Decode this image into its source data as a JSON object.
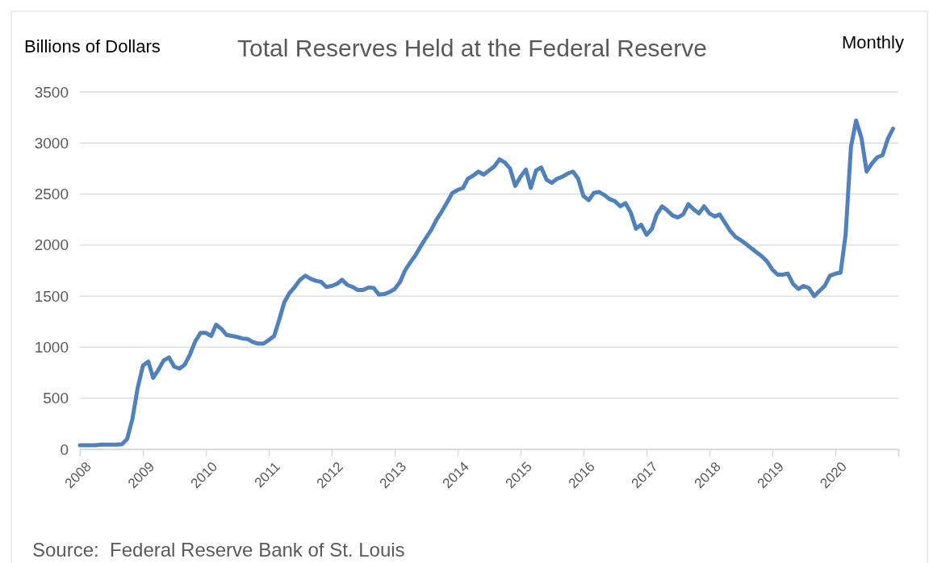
{
  "chart_data": {
    "type": "line",
    "title": "Total Reserves Held at the Federal Reserve",
    "ylabel": "Billions of Dollars",
    "annotations": [
      "Monthly",
      "Source:  Federal Reserve Bank of St. Louis"
    ],
    "x": [
      "2008-01",
      "2008-02",
      "2008-03",
      "2008-04",
      "2008-05",
      "2008-06",
      "2008-07",
      "2008-08",
      "2008-09",
      "2008-10",
      "2008-11",
      "2008-12",
      "2009-01",
      "2009-02",
      "2009-03",
      "2009-04",
      "2009-05",
      "2009-06",
      "2009-07",
      "2009-08",
      "2009-09",
      "2009-10",
      "2009-11",
      "2009-12",
      "2010-01",
      "2010-02",
      "2010-03",
      "2010-04",
      "2010-05",
      "2010-06",
      "2010-07",
      "2010-08",
      "2010-09",
      "2010-10",
      "2010-11",
      "2010-12",
      "2011-01",
      "2011-02",
      "2011-03",
      "2011-04",
      "2011-05",
      "2011-06",
      "2011-07",
      "2011-08",
      "2011-09",
      "2011-10",
      "2011-11",
      "2011-12",
      "2012-01",
      "2012-02",
      "2012-03",
      "2012-04",
      "2012-05",
      "2012-06",
      "2012-07",
      "2012-08",
      "2012-09",
      "2012-10",
      "2012-11",
      "2012-12",
      "2013-01",
      "2013-02",
      "2013-03",
      "2013-04",
      "2013-05",
      "2013-06",
      "2013-07",
      "2013-08",
      "2013-09",
      "2013-10",
      "2013-11",
      "2013-12",
      "2014-01",
      "2014-02",
      "2014-03",
      "2014-04",
      "2014-05",
      "2014-06",
      "2014-07",
      "2014-08",
      "2014-09",
      "2014-10",
      "2014-11",
      "2014-12",
      "2015-01",
      "2015-02",
      "2015-03",
      "2015-04",
      "2015-05",
      "2015-06",
      "2015-07",
      "2015-08",
      "2015-09",
      "2015-10",
      "2015-11",
      "2015-12",
      "2016-01",
      "2016-02",
      "2016-03",
      "2016-04",
      "2016-05",
      "2016-06",
      "2016-07",
      "2016-08",
      "2016-09",
      "2016-10",
      "2016-11",
      "2016-12",
      "2017-01",
      "2017-02",
      "2017-03",
      "2017-04",
      "2017-05",
      "2017-06",
      "2017-07",
      "2017-08",
      "2017-09",
      "2017-10",
      "2017-11",
      "2017-12",
      "2018-01",
      "2018-02",
      "2018-03",
      "2018-04",
      "2018-05",
      "2018-06",
      "2018-07",
      "2018-08",
      "2018-09",
      "2018-10",
      "2018-11",
      "2018-12",
      "2019-01",
      "2019-02",
      "2019-03",
      "2019-04",
      "2019-05",
      "2019-06",
      "2019-07",
      "2019-08",
      "2019-09",
      "2019-10",
      "2019-11",
      "2019-12",
      "2020-01",
      "2020-02",
      "2020-03",
      "2020-04",
      "2020-05",
      "2020-06",
      "2020-07",
      "2020-08",
      "2020-09",
      "2020-10",
      "2020-11",
      "2020-12"
    ],
    "series": [
      {
        "color": "#4f81bd",
        "values": [
          40,
          40,
          40,
          40,
          45,
          45,
          45,
          45,
          50,
          100,
          300,
          600,
          820,
          860,
          700,
          780,
          870,
          900,
          810,
          790,
          830,
          930,
          1060,
          1140,
          1140,
          1110,
          1220,
          1180,
          1120,
          1110,
          1100,
          1085,
          1080,
          1050,
          1035,
          1035,
          1070,
          1110,
          1260,
          1440,
          1530,
          1590,
          1660,
          1700,
          1670,
          1650,
          1640,
          1590,
          1600,
          1620,
          1660,
          1610,
          1590,
          1560,
          1560,
          1585,
          1580,
          1515,
          1520,
          1540,
          1570,
          1640,
          1750,
          1830,
          1900,
          1990,
          2070,
          2150,
          2250,
          2330,
          2420,
          2510,
          2540,
          2560,
          2650,
          2680,
          2720,
          2690,
          2730,
          2770,
          2840,
          2810,
          2750,
          2580,
          2670,
          2740,
          2560,
          2730,
          2760,
          2640,
          2610,
          2650,
          2670,
          2700,
          2720,
          2650,
          2480,
          2440,
          2510,
          2520,
          2490,
          2450,
          2430,
          2380,
          2410,
          2320,
          2160,
          2200,
          2100,
          2160,
          2300,
          2380,
          2340,
          2290,
          2270,
          2300,
          2400,
          2350,
          2310,
          2380,
          2310,
          2280,
          2300,
          2220,
          2140,
          2080,
          2050,
          2010,
          1970,
          1930,
          1890,
          1840,
          1760,
          1710,
          1710,
          1720,
          1620,
          1570,
          1600,
          1580,
          1500,
          1550,
          1600,
          1700,
          1720,
          1730,
          2100,
          2960,
          3220,
          3050,
          2720,
          2800,
          2860,
          2880,
          3040,
          3140
        ]
      }
    ],
    "xlim": [
      "2008-01",
      "2021-01"
    ],
    "xticks": [
      "2008",
      "2009",
      "2010",
      "2011",
      "2012",
      "2013",
      "2014",
      "2015",
      "2016",
      "2017",
      "2018",
      "2019",
      "2020",
      {
        "value": "2021",
        "label": null
      }
    ],
    "ylim": [
      0,
      3500
    ],
    "yticks": [
      0,
      500,
      1000,
      1500,
      2000,
      2500,
      3000,
      3500
    ],
    "grid": "y",
    "line_style": "solid",
    "marker": "none"
  }
}
